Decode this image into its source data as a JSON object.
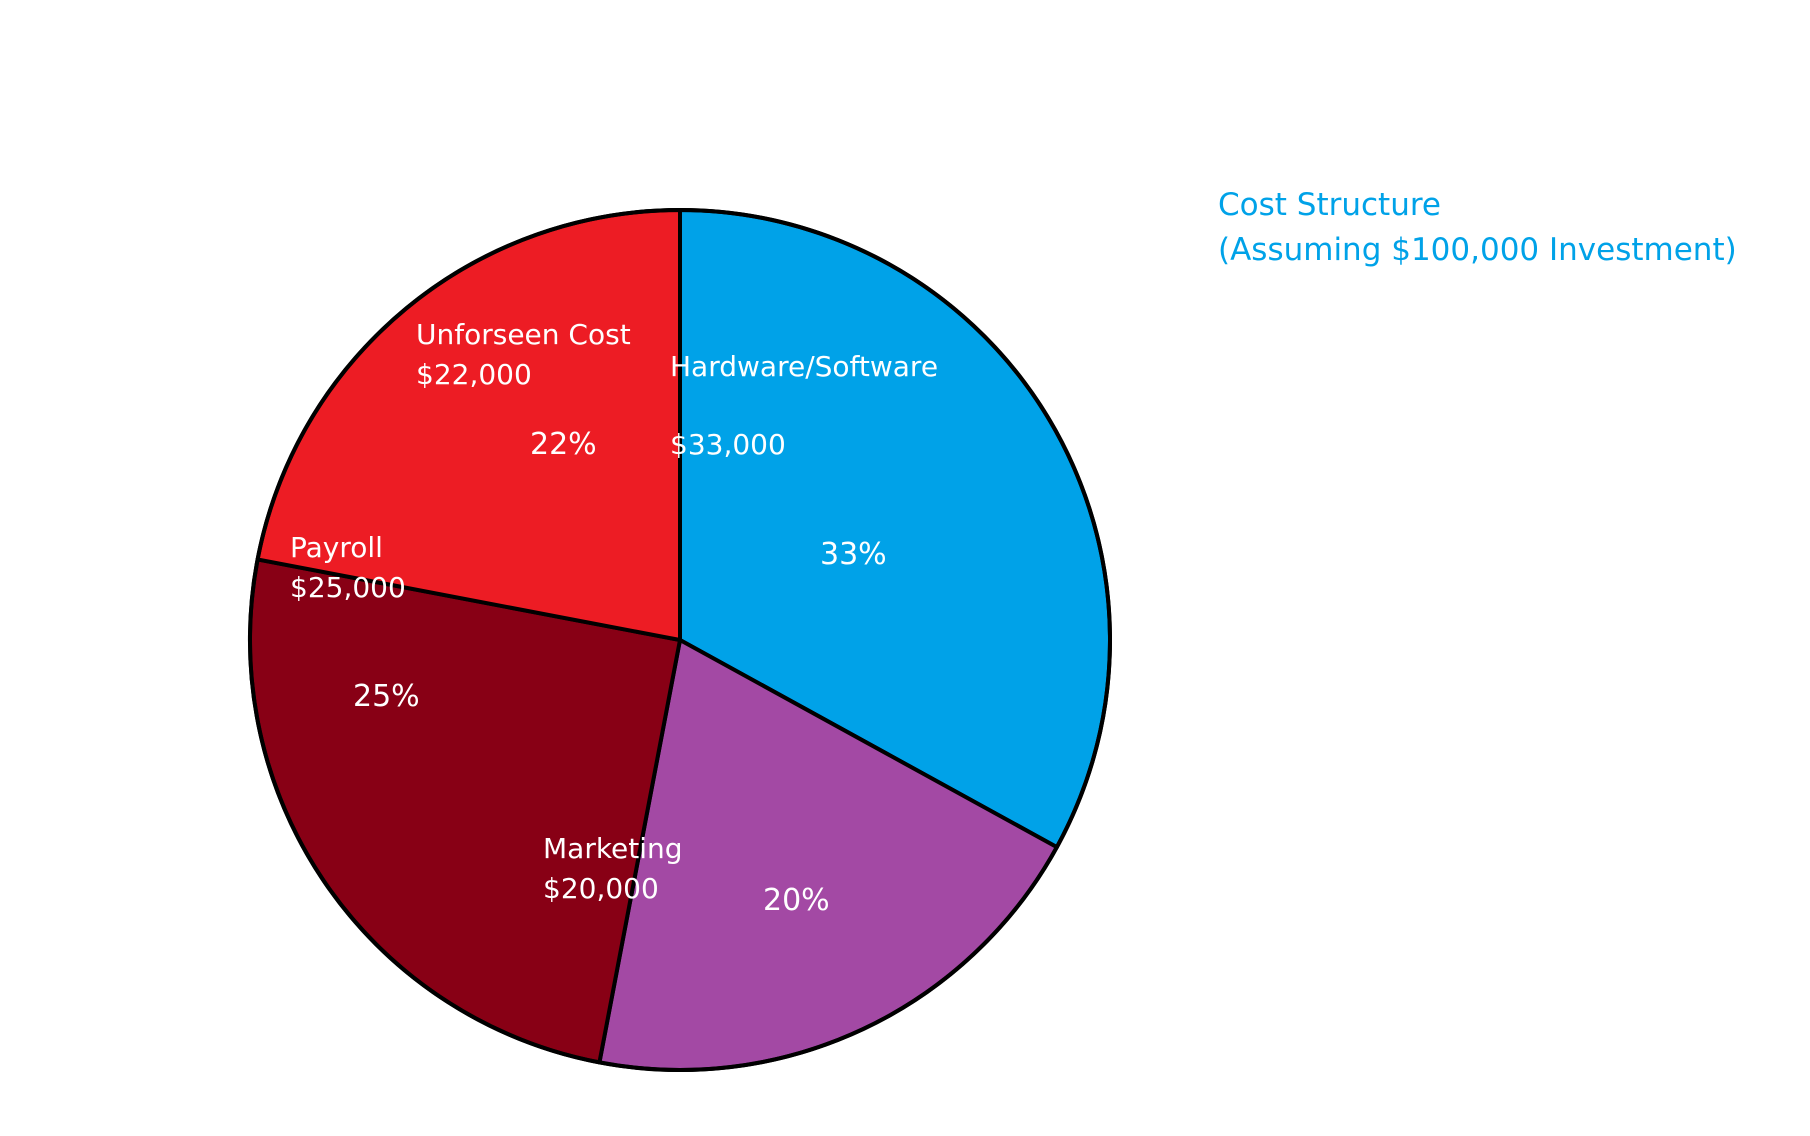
{
  "chart_data": {
    "type": "pie",
    "title": "Cost Structure",
    "subtitle": "(Assuming $100,000 Investment)",
    "slices": [
      {
        "label": "Hardware/Software",
        "amount": "$33,000",
        "percent_label": "33%",
        "value": 33,
        "color": "#00a2e8"
      },
      {
        "label": "Marketing",
        "amount": "$20,000",
        "percent_label": "20%",
        "value": 20,
        "color": "#a349a4"
      },
      {
        "label": "Payroll",
        "amount": "$25,000",
        "percent_label": "25%",
        "value": 25,
        "color": "#880015"
      },
      {
        "label": "Unforseen Cost",
        "amount": "$22,000",
        "percent_label": "22%",
        "value": 22,
        "color": "#ed1c24"
      }
    ],
    "legend": "none"
  }
}
